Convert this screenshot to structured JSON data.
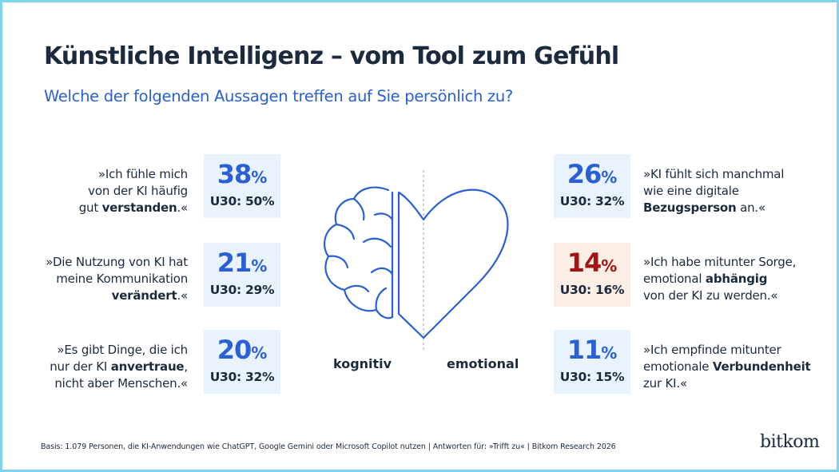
{
  "title": "Künstliche Intelligenz – vom Tool zum Gefühl",
  "subtitle": "Welche der folgenden Aussagen treffen auf Sie persönlich zu?",
  "unit": "%",
  "colors": {
    "accent": "#2a5fd6",
    "warning": "#a31515",
    "card": "#e8f3fd",
    "card_warning": "#fbeee5",
    "border": "#7ed3ef"
  },
  "left": {
    "label": "kognitiv",
    "items": [
      {
        "lines": [
          [
            "»Ich fühle mich"
          ],
          [
            "von der KI häufig"
          ],
          [
            "gut ",
            "verstanden",
            ".«"
          ]
        ],
        "value": "38",
        "u30": "U30: 50%"
      },
      {
        "lines": [
          [
            "»Die Nutzung von KI hat"
          ],
          [
            "meine Kommunikation"
          ],
          [
            "",
            "verändert",
            ".«"
          ]
        ],
        "value": "21",
        "u30": "U30: 29%"
      },
      {
        "lines": [
          [
            "»Es gibt Dinge, die ich"
          ],
          [
            "nur der KI ",
            "anvertraue",
            ","
          ],
          [
            "nicht aber Menschen.«"
          ]
        ],
        "value": "20",
        "u30": "U30: 32%"
      }
    ]
  },
  "right": {
    "label": "emotional",
    "items": [
      {
        "lines": [
          [
            "»KI fühlt sich manchmal"
          ],
          [
            "wie eine digitale"
          ],
          [
            "",
            "Bezugsperson",
            " an.«"
          ]
        ],
        "value": "26",
        "u30": "U30: 32%"
      },
      {
        "lines": [
          [
            "»Ich habe mitunter Sorge,"
          ],
          [
            "emotional ",
            "abhängig",
            ""
          ],
          [
            "von der KI zu werden.«"
          ]
        ],
        "value": "14",
        "u30": "U30: 16%",
        "warning": true
      },
      {
        "lines": [
          [
            "»Ich empfinde mitunter"
          ],
          [
            "emotionale ",
            "Verbundenheit",
            ""
          ],
          [
            "zur KI.«"
          ]
        ],
        "value": "11",
        "u30": "U30: 15%"
      }
    ]
  },
  "footer": "Basis: 1.079 Personen, die KI-Anwendungen wie ChatGPT, Google Gemini oder Microsoft Copilot nutzen | Antworten für: »Trifft zu« | Bitkom Research 2026",
  "brand": "bitkom",
  "illustration": {
    "left_icon": "brain-half-icon",
    "right_icon": "heart-half-icon"
  }
}
